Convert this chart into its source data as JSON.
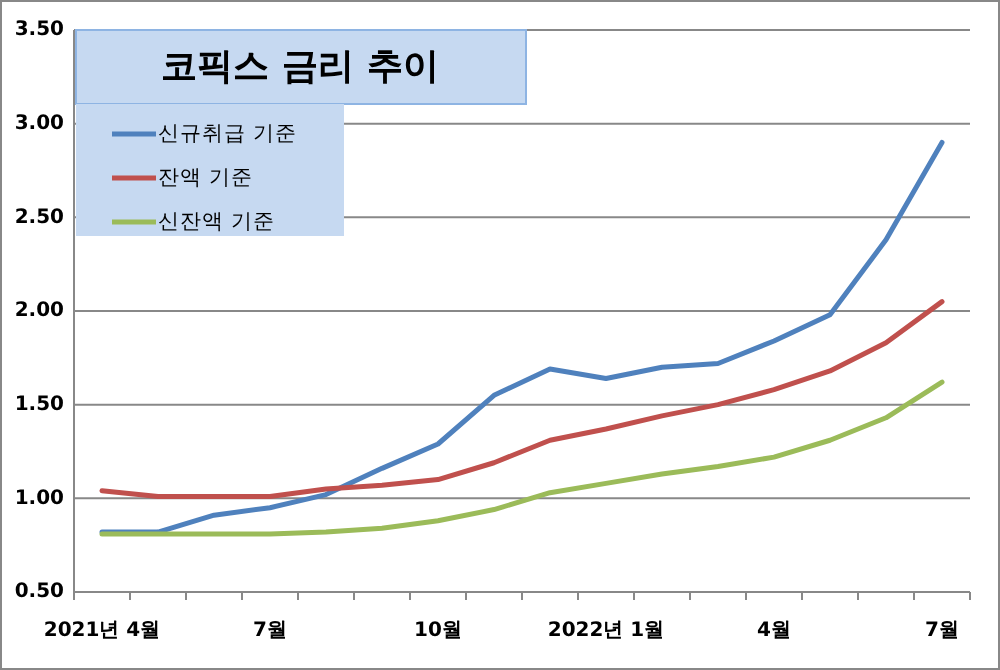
{
  "chart_data": {
    "type": "line",
    "title": "코픽스  금리  추이",
    "categories": [
      "2021년 4월",
      null,
      null,
      "7월",
      null,
      null,
      "10월",
      null,
      null,
      "2022년 1월",
      null,
      null,
      "4월",
      null,
      null,
      "7월"
    ],
    "series": [
      {
        "name": "신규취급 기준",
        "color": "#4f81bd",
        "values": [
          0.82,
          0.82,
          0.91,
          0.95,
          1.02,
          1.16,
          1.29,
          1.55,
          1.69,
          1.64,
          1.7,
          1.72,
          1.84,
          1.98,
          2.38,
          2.9
        ]
      },
      {
        "name": "잔액 기준",
        "color": "#c0504d",
        "values": [
          1.04,
          1.01,
          1.01,
          1.01,
          1.05,
          1.07,
          1.1,
          1.19,
          1.31,
          1.37,
          1.44,
          1.5,
          1.58,
          1.68,
          1.83,
          2.05
        ]
      },
      {
        "name": "신잔액 기준",
        "color": "#9bbb59",
        "values": [
          0.81,
          0.81,
          0.81,
          0.81,
          0.82,
          0.84,
          0.88,
          0.94,
          1.03,
          1.08,
          1.13,
          1.17,
          1.22,
          1.31,
          1.43,
          1.62
        ]
      }
    ],
    "ylim": [
      0.5,
      3.5
    ],
    "yticks": [
      {
        "value": 0.5,
        "label": "0.50"
      },
      {
        "value": 1,
        "label": "1.00"
      },
      {
        "value": 1.5,
        "label": "1.50"
      },
      {
        "value": 2,
        "label": "2.00"
      },
      {
        "value": 2.5,
        "label": "2.50"
      },
      {
        "value": 3,
        "label": "3.00"
      },
      {
        "value": 3.5,
        "label": "3.50"
      }
    ],
    "grid": "y",
    "legend": "top left",
    "marker": "none",
    "line_style": "solid"
  }
}
